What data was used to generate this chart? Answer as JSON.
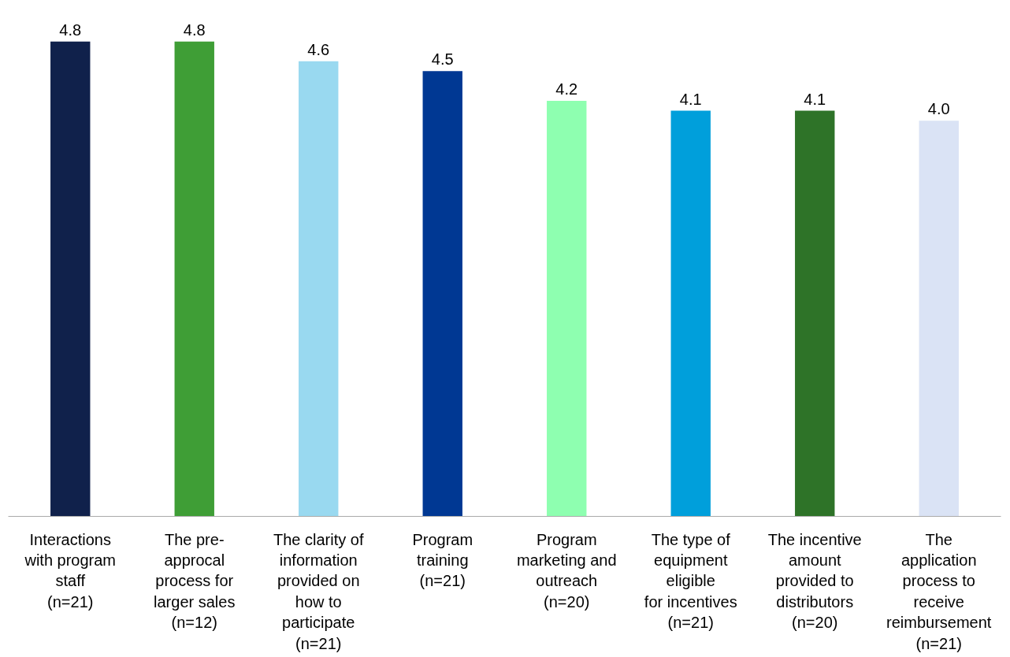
{
  "chart_data": {
    "type": "bar",
    "categories": [
      "Interactions\nwith program\nstaff\n(n=21)",
      "The pre-\napprocal\nprocess for\nlarger sales\n(n=12)",
      "The clarity of\ninformation\nprovided on\nhow to\nparticipate\n(n=21)",
      "Program\ntraining\n(n=21)",
      "Program\nmarketing and\noutreach\n(n=20)",
      "The type of\nequipment\neligible\nfor incentives\n(n=21)",
      "The incentive\namount\nprovided to\ndistributors\n(n=20)",
      "The\napplication\nprocess to\nreceive\nreimbursement\n(n=21)"
    ],
    "values": [
      4.8,
      4.8,
      4.6,
      4.5,
      4.2,
      4.1,
      4.1,
      4.0
    ],
    "colors": [
      "#10214b",
      "#3f9e36",
      "#99d9f0",
      "#003893",
      "#8effb0",
      "#009fdb",
      "#2e7328",
      "#dae3f5"
    ],
    "value_labels": [
      "4.8",
      "4.8",
      "4.6",
      "4.5",
      "4.2",
      "4.1",
      "4.1",
      "4.0"
    ],
    "grid": false
  }
}
